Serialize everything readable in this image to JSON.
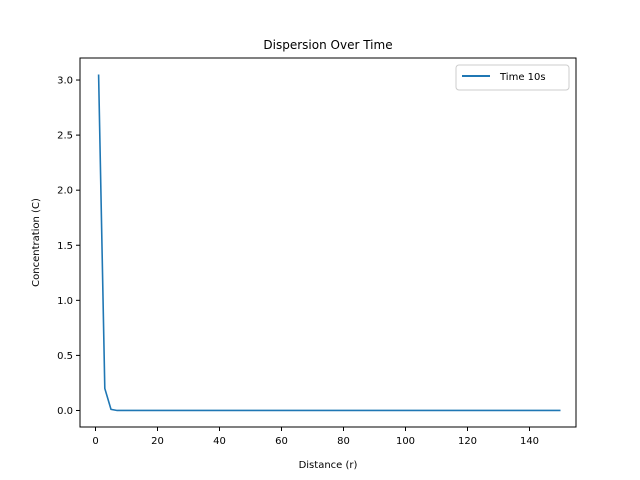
{
  "chart_data": {
    "type": "line",
    "title": "Dispersion Over Time",
    "xlabel": "Distance (r)",
    "ylabel": "Concentration (C)",
    "xlim": [
      -5,
      155
    ],
    "ylim": [
      -0.15,
      3.2
    ],
    "xticks": [
      0,
      20,
      40,
      60,
      80,
      100,
      120,
      140
    ],
    "yticks": [
      0.0,
      0.5,
      1.0,
      1.5,
      2.0,
      2.5,
      3.0
    ],
    "xtick_labels": [
      "0",
      "20",
      "40",
      "60",
      "80",
      "100",
      "120",
      "140"
    ],
    "ytick_labels": [
      "0.0",
      "0.5",
      "1.0",
      "1.5",
      "2.0",
      "2.5",
      "3.0"
    ],
    "grid": false,
    "legend_position": "top-right",
    "series": [
      {
        "name": "Time 10s",
        "color": "#1f77b4",
        "x": [
          1,
          3,
          5,
          7,
          9,
          150
        ],
        "y": [
          3.05,
          0.2,
          0.01,
          0.0,
          0.0,
          0.0
        ]
      }
    ]
  }
}
